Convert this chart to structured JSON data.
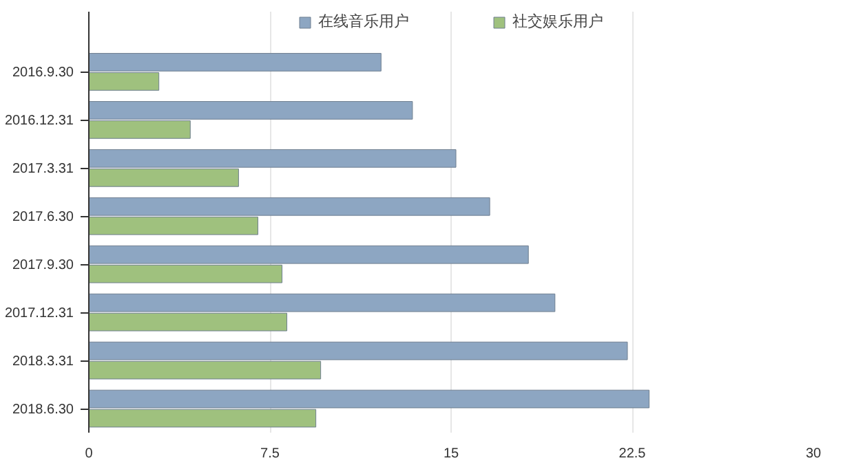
{
  "chart_data": {
    "type": "bar",
    "orientation": "horizontal",
    "categories": [
      "2016.9.30",
      "2016.12.31",
      "2017.3.31",
      "2017.6.30",
      "2017.9.30",
      "2017.12.31",
      "2018.3.31",
      "2018.6.30"
    ],
    "series": [
      {
        "name": "在线音乐用户",
        "color": "#8da6c2",
        "values": [
          12.1,
          13.4,
          15.2,
          16.6,
          18.2,
          19.3,
          22.3,
          23.2
        ]
      },
      {
        "name": "社交娱乐用户",
        "color": "#9fc17e",
        "values": [
          2.9,
          4.2,
          6.2,
          7.0,
          8.0,
          8.2,
          9.6,
          9.4
        ]
      }
    ],
    "xlim": [
      0,
      30
    ],
    "xticks": [
      0,
      7.5,
      15,
      22.5,
      30
    ],
    "grid": "x",
    "legend": "top"
  }
}
